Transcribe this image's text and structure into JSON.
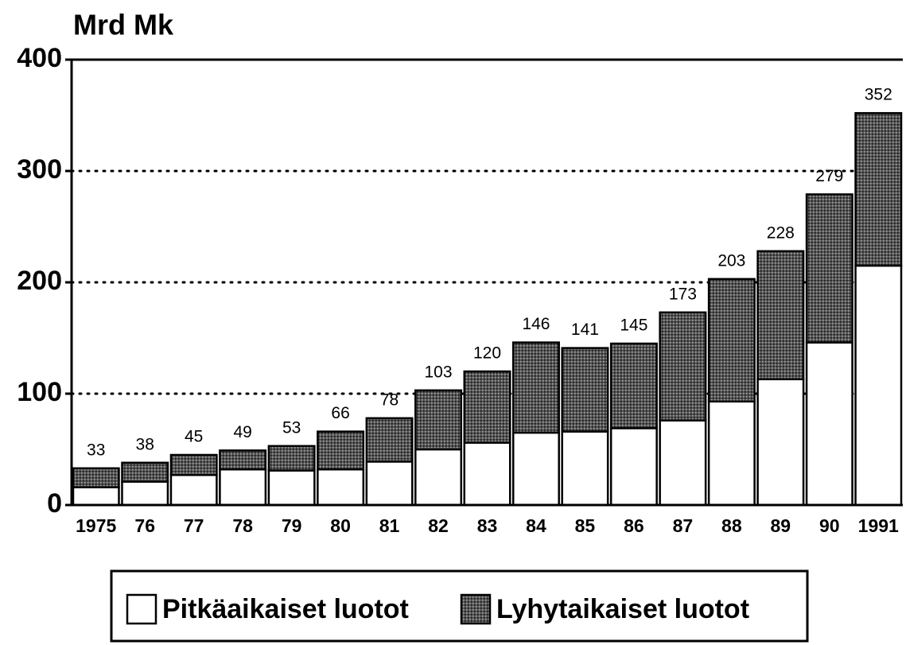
{
  "chart_data": {
    "type": "stacked-bar",
    "y_label": "Mrd Mk",
    "categories": [
      "1975",
      "76",
      "77",
      "78",
      "79",
      "80",
      "81",
      "82",
      "83",
      "84",
      "85",
      "86",
      "87",
      "88",
      "89",
      "90",
      "1991"
    ],
    "series": [
      {
        "name": "Pitkäaikaiset luotot",
        "color": "#ffffff",
        "values": [
          16,
          21,
          27,
          32,
          31,
          32,
          39,
          50,
          56,
          65,
          66,
          69,
          76,
          93,
          113,
          146,
          215
        ]
      },
      {
        "name": "Lyhytaikaiset luotot",
        "color": "#3a3a3a",
        "values": [
          17,
          17,
          18,
          17,
          22,
          34,
          39,
          53,
          64,
          81,
          75,
          76,
          97,
          110,
          115,
          133,
          137
        ]
      }
    ],
    "totals": [
      33,
      38,
      45,
      49,
      53,
      66,
      78,
      103,
      120,
      146,
      141,
      145,
      173,
      203,
      228,
      279,
      352
    ],
    "ylim": [
      0,
      400
    ],
    "yticks": [
      0,
      100,
      200,
      300,
      400
    ],
    "grid": true
  }
}
